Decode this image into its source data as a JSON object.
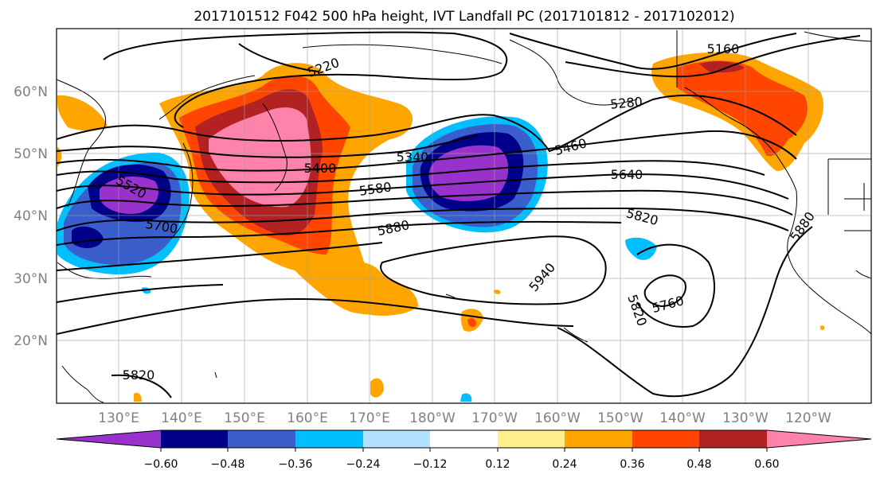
{
  "title": "2017101512 F042 500 hPa height, IVT Landfall PC (2017101812 - 2017102012)",
  "map": {
    "latitude_labels": [
      "60°N",
      "50°N",
      "40°N",
      "30°N",
      "20°N"
    ],
    "longitude_labels": [
      "130°E",
      "140°E",
      "150°E",
      "160°E",
      "170°E",
      "180°W",
      "170°W",
      "160°W",
      "150°W",
      "140°W",
      "130°W",
      "120°W"
    ],
    "height_contour_labels": [
      "5160",
      "5220",
      "5280",
      "5340",
      "5400",
      "5460",
      "5520",
      "5580",
      "5640",
      "5700",
      "5820",
      "5880",
      "5940",
      "5760"
    ]
  },
  "colorbar": {
    "tick_labels": [
      "−0.60",
      "−0.48",
      "−0.36",
      "−0.24",
      "−0.12",
      "0.12",
      "0.24",
      "0.36",
      "0.48",
      "0.60"
    ],
    "colors": [
      "#9932cc",
      "#00008b",
      "#3a5fcd",
      "#00bfff",
      "#b0e2ff",
      "#ffffff",
      "#fff08c",
      "#ffa500",
      "#ff4500",
      "#b22222",
      "#ff82ab"
    ]
  }
}
